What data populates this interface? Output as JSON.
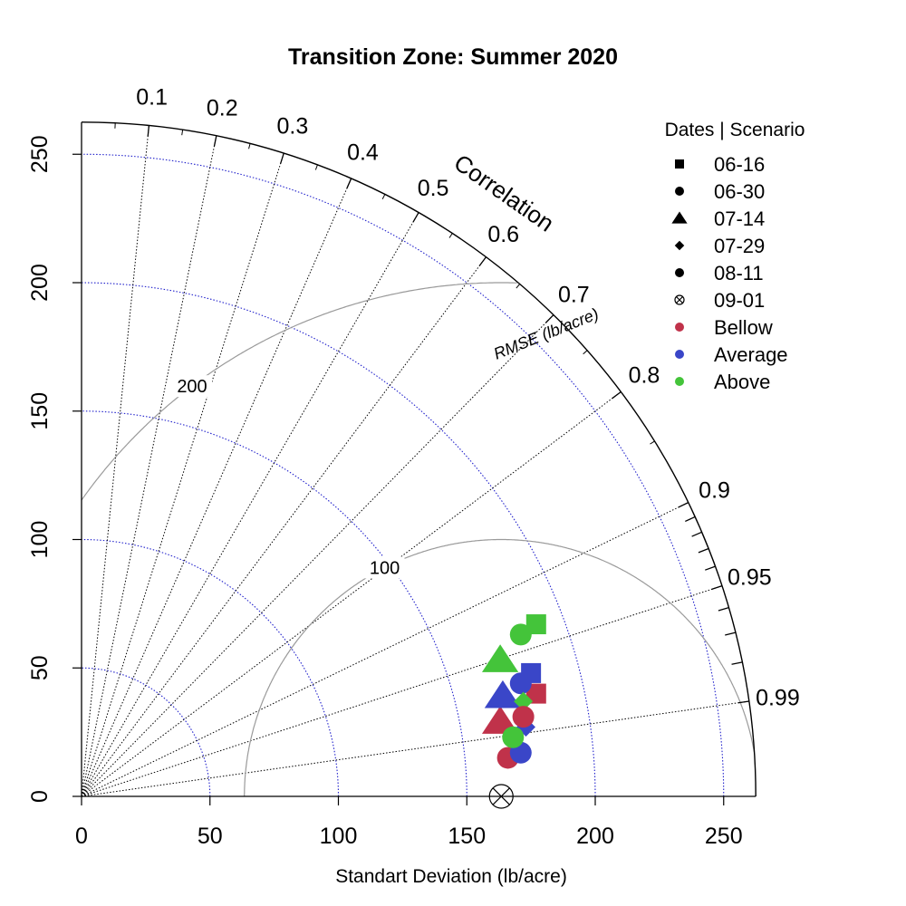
{
  "chart_data": {
    "type": "taylor_diagram",
    "title": "Transition Zone: Summer 2020",
    "xlabel": "Standart Deviation (lb/acre)",
    "correlation_label": "Correlation",
    "rmse_label": "RMSE (lb/acre)",
    "sd_range": [
      0,
      262.5
    ],
    "sd_ticks": [
      0,
      50,
      100,
      150,
      200,
      250
    ],
    "sd_circles": [
      50,
      100,
      150,
      200,
      250
    ],
    "correlation_ticks": [
      0.1,
      0.2,
      0.3,
      0.4,
      0.5,
      0.6,
      0.7,
      0.8,
      0.9,
      0.95,
      0.99
    ],
    "rmse_arcs": [
      100,
      200
    ],
    "reference": {
      "label": "09-01",
      "sd": 163.4
    },
    "legend": {
      "title": "Dates | Scenario",
      "placement": "top-right",
      "dates": [
        {
          "label": "06-16",
          "marker": "square"
        },
        {
          "label": "06-30",
          "marker": "circle"
        },
        {
          "label": "07-14",
          "marker": "triangle"
        },
        {
          "label": "07-29",
          "marker": "diamond"
        },
        {
          "label": "08-11",
          "marker": "circle"
        },
        {
          "label": "09-01",
          "marker": "circle-x"
        }
      ],
      "scenarios": [
        {
          "label": "Bellow",
          "color": "#c0324a"
        },
        {
          "label": "Average",
          "color": "#3a46c8"
        },
        {
          "label": "Above",
          "color": "#44c43a"
        }
      ]
    },
    "points": [
      {
        "date": "06-16",
        "scenario": "Bellow",
        "x": 177,
        "y": 40
      },
      {
        "date": "06-16",
        "scenario": "Average",
        "x": 175,
        "y": 48
      },
      {
        "date": "06-16",
        "scenario": "Above",
        "x": 177,
        "y": 67
      },
      {
        "date": "06-30",
        "scenario": "Bellow",
        "x": 166,
        "y": 15
      },
      {
        "date": "06-30",
        "scenario": "Average",
        "x": 171,
        "y": 44
      },
      {
        "date": "06-30",
        "scenario": "Above",
        "x": 171,
        "y": 63
      },
      {
        "date": "07-14",
        "scenario": "Bellow",
        "x": 163,
        "y": 29
      },
      {
        "date": "07-14",
        "scenario": "Average",
        "x": 164,
        "y": 39
      },
      {
        "date": "07-14",
        "scenario": "Above",
        "x": 163,
        "y": 53
      },
      {
        "date": "07-29",
        "scenario": "Bellow",
        "x": 172,
        "y": 32
      },
      {
        "date": "07-29",
        "scenario": "Average",
        "x": 173,
        "y": 27
      },
      {
        "date": "07-29",
        "scenario": "Above",
        "x": 172,
        "y": 37
      },
      {
        "date": "08-11",
        "scenario": "Bellow",
        "x": 172,
        "y": 31
      },
      {
        "date": "08-11",
        "scenario": "Average",
        "x": 171,
        "y": 17
      },
      {
        "date": "08-11",
        "scenario": "Above",
        "x": 168,
        "y": 23
      }
    ]
  }
}
